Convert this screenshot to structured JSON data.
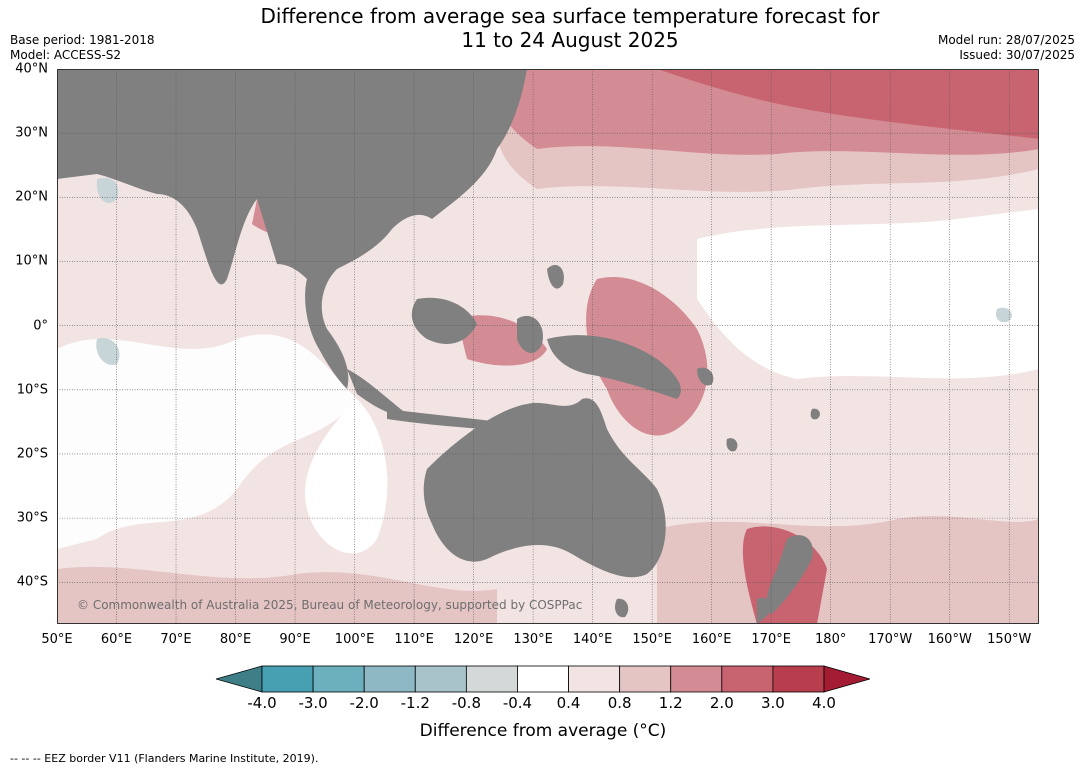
{
  "header": {
    "title": "Difference from average sea surface temperature forecast for\n11 to 24 August 2025",
    "base_period": "Base period: 1981-2018",
    "model": "Model: ACCESS-S2",
    "model_run": "Model run: 28/07/2025",
    "issued": "Issued: 30/07/2025"
  },
  "map": {
    "lon_range": [
      50,
      215
    ],
    "lat_range": [
      -46.5,
      40
    ],
    "lat_labels": [
      "40°N",
      "30°N",
      "20°N",
      "10°N",
      "0°",
      "10°S",
      "20°S",
      "30°S",
      "40°S"
    ],
    "lat_values": [
      40,
      30,
      20,
      10,
      0,
      -10,
      -20,
      -30,
      -40
    ],
    "lon_labels": [
      "50°E",
      "60°E",
      "70°E",
      "80°E",
      "90°E",
      "100°E",
      "110°E",
      "120°E",
      "130°E",
      "140°E",
      "150°E",
      "160°E",
      "170°E",
      "180°",
      "170°W",
      "160°W",
      "150°W"
    ],
    "lon_values": [
      50,
      60,
      70,
      80,
      90,
      100,
      110,
      120,
      130,
      140,
      150,
      160,
      170,
      180,
      190,
      200,
      210
    ],
    "copyright": "© Commonwealth of Australia 2025, Bureau of Meteorology, supported by COSPPac",
    "colors": {
      "land": "#808080",
      "near_avg": "#ffffff",
      "p04_08": "#f3e4e4",
      "p08_12": "#e5c4c4",
      "p12_20": "#d48c94",
      "p20_30": "#c76470",
      "p30_40": "#b83e4e",
      "neg": "#c8d5d8"
    }
  },
  "colorbar": {
    "label": "Difference from average (°C)",
    "ticks": [
      "-4.0",
      "-3.0",
      "-2.0",
      "-1.2",
      "-0.8",
      "-0.4",
      "0.4",
      "0.8",
      "1.2",
      "2.0",
      "3.0",
      "4.0"
    ],
    "under_color": "#3e7e86",
    "over_color": "#a31c33",
    "bin_colors": [
      "#46a0b2",
      "#6cb0be",
      "#8eb8c4",
      "#a8c4ca",
      "#d4d8d8",
      "#ffffff",
      "#f3e4e4",
      "#e5c4c4",
      "#d48c94",
      "#c76470",
      "#b83e4e"
    ]
  },
  "footnote": "--  --  -- EEZ border V11 (Flanders Marine Institute, 2019)."
}
